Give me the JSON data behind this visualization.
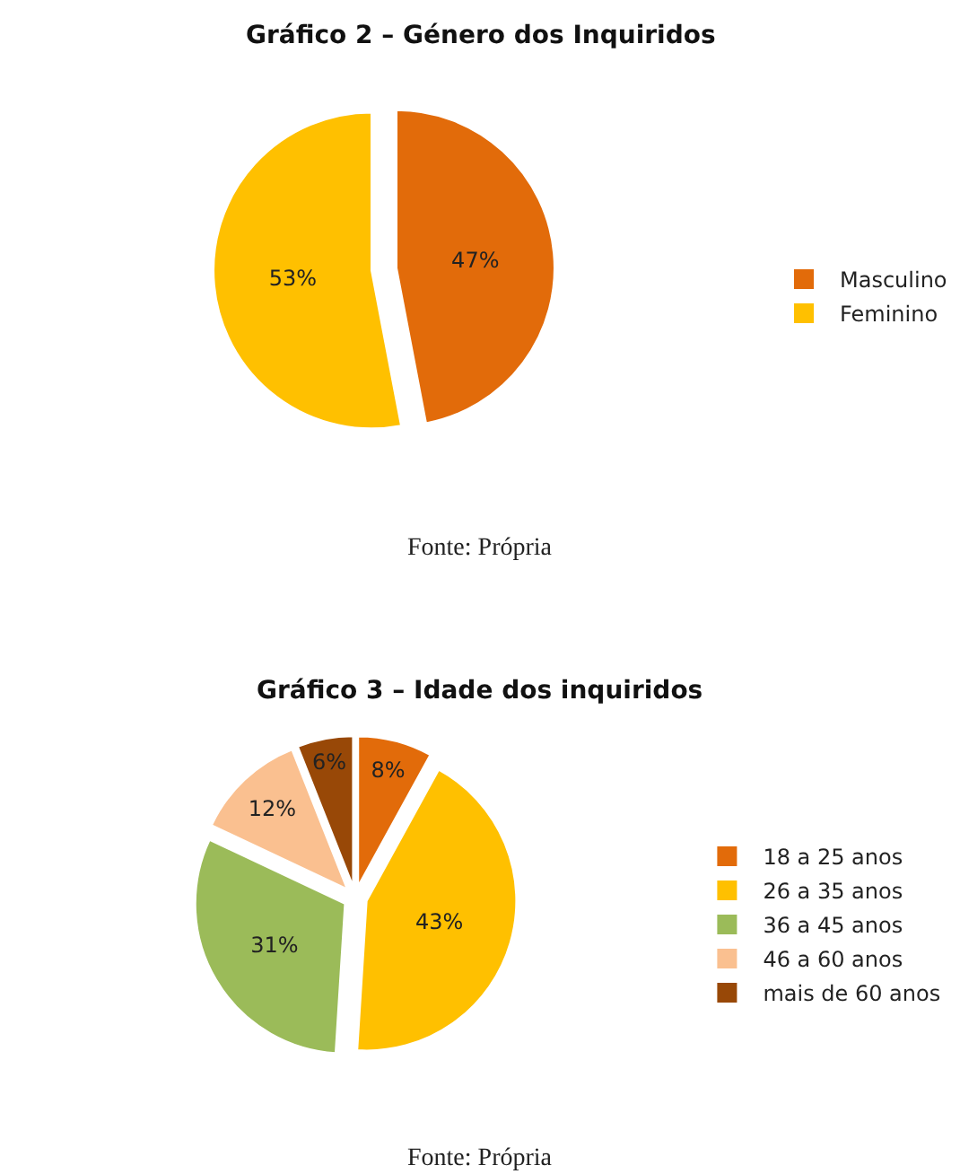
{
  "chart_data": [
    {
      "type": "pie",
      "title": "Gráfico 2 – Género dos Inquiridos",
      "categories": [
        "Masculino",
        "Feminino"
      ],
      "values": [
        47,
        53
      ],
      "value_labels": [
        "47%",
        "53%"
      ],
      "colors": [
        "#e26b0a",
        "#ffc000"
      ],
      "legend": "right",
      "annotations": [
        "Fonte: Própria"
      ]
    },
    {
      "type": "pie",
      "title": "Gráfico 3 – Idade dos inquiridos",
      "categories": [
        "18 a 25 anos",
        "26 a 35 anos",
        "36 a 45 anos",
        "46 a 60 anos",
        "mais de 60 anos"
      ],
      "values": [
        8,
        43,
        31,
        12,
        6
      ],
      "value_labels": [
        "8%",
        "43%",
        "31%",
        "12%",
        "6%"
      ],
      "colors": [
        "#e26b0a",
        "#ffc000",
        "#9bbb59",
        "#fac090",
        "#984807"
      ],
      "legend": "right",
      "annotations": [
        "Fonte: Própria"
      ]
    }
  ]
}
